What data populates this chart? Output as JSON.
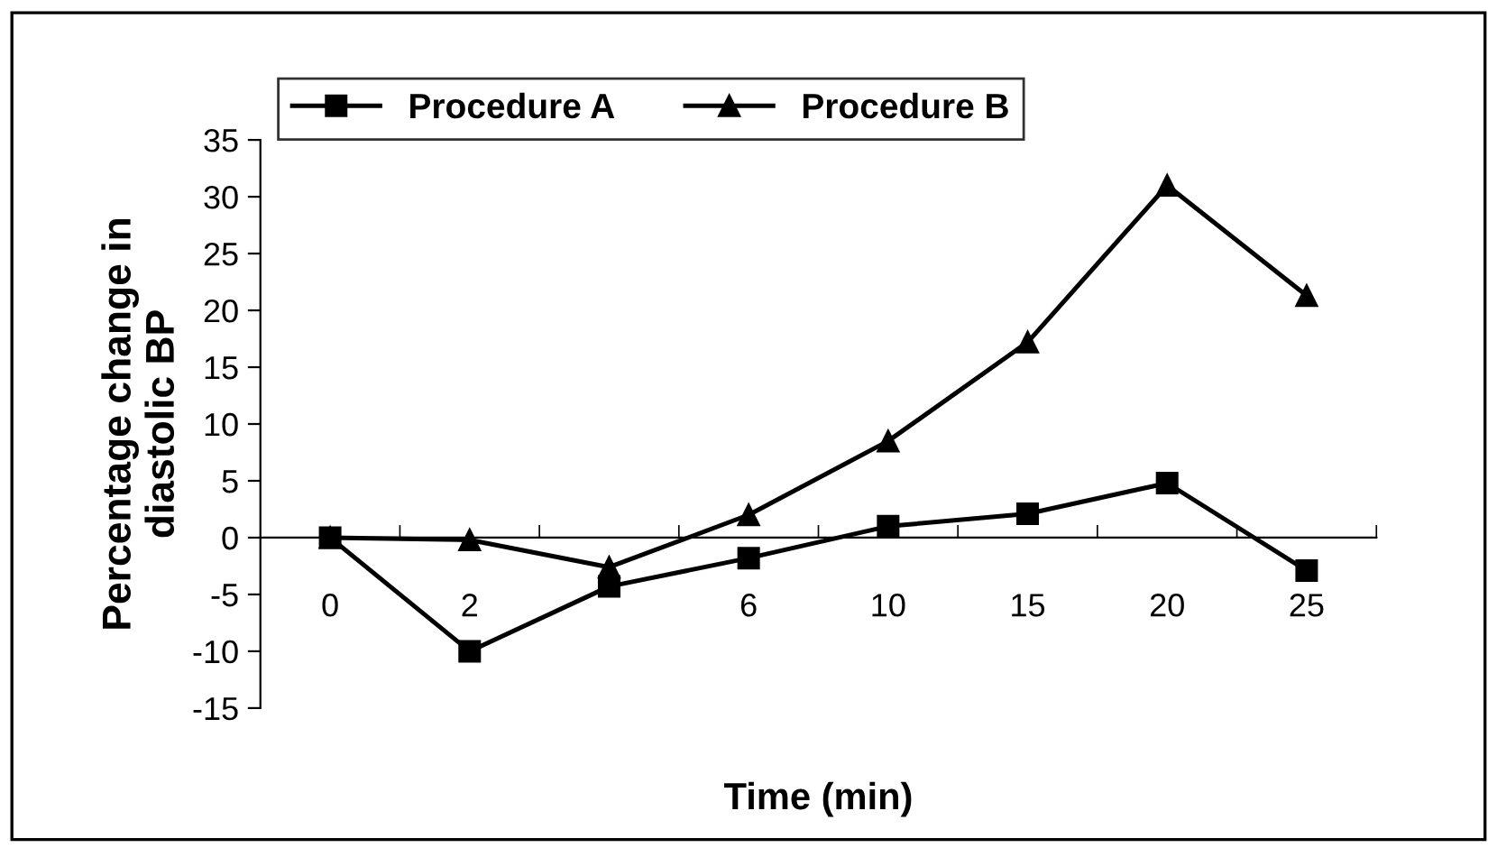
{
  "chart_data": {
    "type": "line",
    "xlabel": "Time (min)",
    "ylabel": "Percentage change in\ndiastolic BP",
    "categories": [
      "0",
      "2",
      null,
      "6",
      "10",
      "15",
      "20",
      "25"
    ],
    "series": [
      {
        "name": "Procedure A",
        "color": "#000000",
        "marker": "square",
        "values": [
          0,
          -10,
          -4.3,
          -1.8,
          1,
          2.1,
          4.8,
          -2.9
        ]
      },
      {
        "name": "Procedure B",
        "color": "#000000",
        "marker": "triangle",
        "values": [
          0,
          -0.2,
          -2.6,
          2,
          8.5,
          17.2,
          31,
          21.3
        ]
      }
    ],
    "ylim": [
      -15,
      35
    ],
    "yticks": [
      -15,
      -10,
      -5,
      0,
      5,
      10,
      15,
      20,
      25,
      30,
      35
    ],
    "grid": false,
    "legend": "top",
    "line_style": "solid"
  }
}
